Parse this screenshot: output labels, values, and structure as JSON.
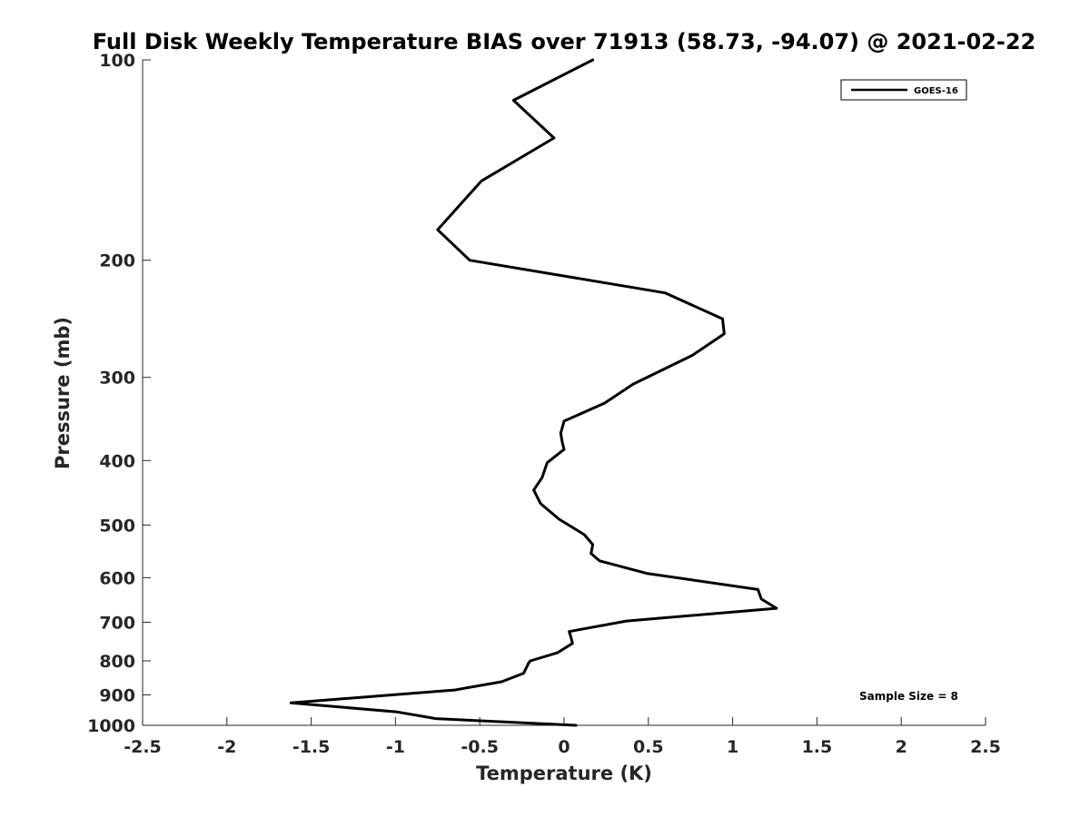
{
  "chart_data": {
    "type": "line",
    "title": "Full Disk Weekly Temperature BIAS over 71913 (58.73, -94.07) @ 2021-02-22",
    "xlabel": "Temperature (K)",
    "ylabel": "Pressure (mb)",
    "xlim": [
      -2.5,
      2.5
    ],
    "ylim": [
      100,
      1000
    ],
    "y_scale": "log",
    "y_reversed": true,
    "grid": false,
    "legend_position": "top-right",
    "x_ticks": [
      "-2.5",
      "-2",
      "-1.5",
      "-1",
      "-0.5",
      "0",
      "0.5",
      "1",
      "1.5",
      "2",
      "2.5"
    ],
    "y_ticks": [
      "100",
      "200",
      "300",
      "400",
      "500",
      "600",
      "700",
      "800",
      "900",
      "1000"
    ],
    "annotation": "Sample Size = 8",
    "series": [
      {
        "name": "GOES-16",
        "color": "#000000",
        "x": [
          0.17,
          -0.3,
          -0.06,
          -0.49,
          -0.75,
          -0.56,
          0.6,
          0.94,
          0.95,
          0.76,
          0.41,
          0.24,
          0,
          -0.02,
          -0.01,
          0,
          -0.1,
          -0.13,
          -0.18,
          -0.14,
          -0.03,
          0.12,
          0.17,
          0.16,
          0.21,
          0.49,
          1.15,
          1.17,
          1.26,
          0.37,
          0.03,
          0.04,
          0.05,
          -0.04,
          -0.2,
          -0.21,
          -0.24,
          -0.37,
          -0.65,
          -1.62,
          -0.99,
          -0.76,
          0.07
        ],
        "y": [
          100,
          115,
          131,
          152,
          180,
          200,
          224,
          245,
          258,
          278,
          307,
          328,
          349,
          364,
          376,
          385,
          403,
          424,
          443,
          464,
          490,
          517,
          535,
          552,
          566,
          591,
          625,
          646,
          667,
          697,
          723,
          736,
          753,
          778,
          800,
          806,
          835,
          860,
          885,
          925,
          955,
          977,
          1000
        ]
      }
    ]
  }
}
